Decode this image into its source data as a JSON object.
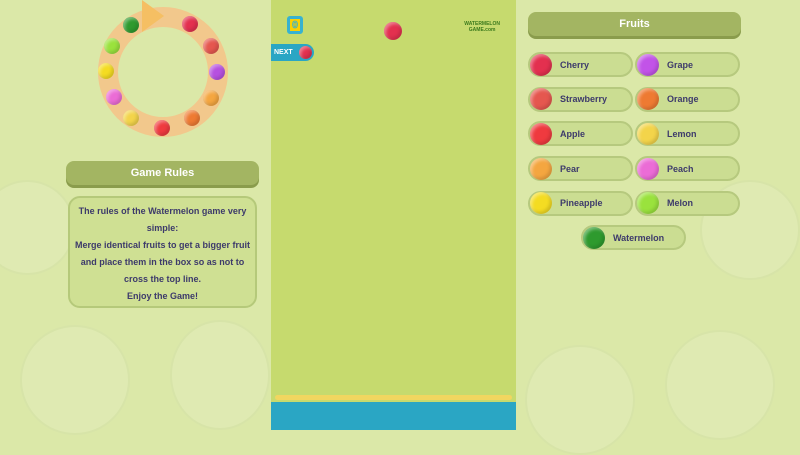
{
  "cycle": [
    {
      "name": "cherry",
      "color": "#e3304f"
    },
    {
      "name": "strawberry",
      "color": "#e5574f"
    },
    {
      "name": "grape",
      "color": "#b650e0"
    },
    {
      "name": "pear",
      "color": "#f4a640"
    },
    {
      "name": "orange",
      "color": "#ee7a32"
    },
    {
      "name": "apple",
      "color": "#ef3a3f"
    },
    {
      "name": "lemon",
      "color": "#f3d44a"
    },
    {
      "name": "peach",
      "color": "#eb6cd6"
    },
    {
      "name": "pineapple",
      "color": "#f4dc22"
    },
    {
      "name": "melon",
      "color": "#9ae23d"
    },
    {
      "name": "watermelon",
      "color": "#2e9a2e"
    }
  ],
  "rules": {
    "title": "Game Rules",
    "line1": "The rules of the Watermelon game very simple:",
    "line2": "Merge identical fruits to get a bigger fruit and place them in the box so as not to cross the top line.",
    "line3": "Enjoy the Game!"
  },
  "game": {
    "score": "0",
    "logo_line1": "WATERMELON",
    "logo_line2": "GAME.com",
    "next_label": "NEXT",
    "next_fruit": "cherry",
    "current_fruit": "cherry",
    "colors": {
      "field": "#c6da6e",
      "accent": "#2aa6c4"
    }
  },
  "fruits": {
    "title": "Fruits",
    "items": [
      {
        "label": "Cherry",
        "color": "#e3304f"
      },
      {
        "label": "Grape",
        "color": "#c253e8"
      },
      {
        "label": "Strawberry",
        "color": "#e5574f"
      },
      {
        "label": "Orange",
        "color": "#ee7a32"
      },
      {
        "label": "Apple",
        "color": "#ef3a3f"
      },
      {
        "label": "Lemon",
        "color": "#f3d44a"
      },
      {
        "label": "Pear",
        "color": "#f4a640"
      },
      {
        "label": "Peach",
        "color": "#eb6cd6"
      },
      {
        "label": "Pineapple",
        "color": "#f4dc22"
      },
      {
        "label": "Melon",
        "color": "#9ae23d"
      },
      {
        "label": "Watermelon",
        "color": "#2e9a2e"
      }
    ]
  }
}
